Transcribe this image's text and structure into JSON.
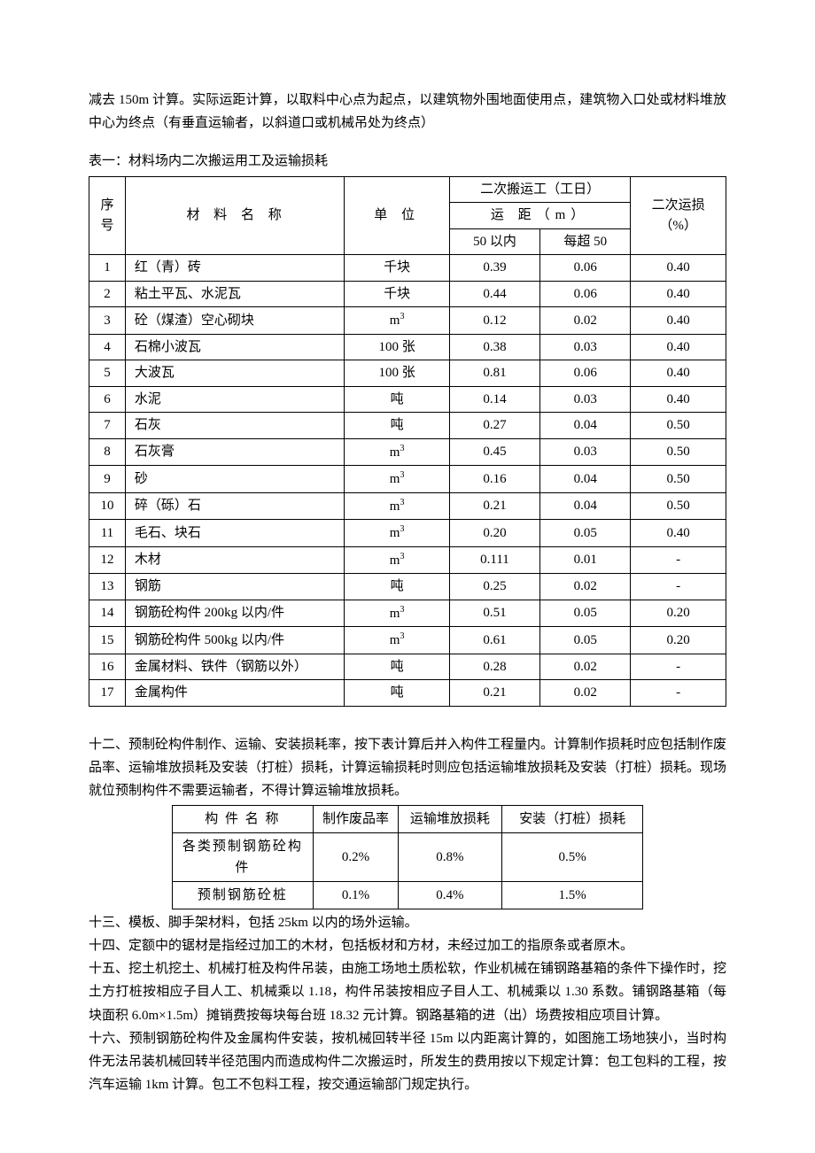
{
  "intro_para": "减去 150m 计算。实际运距计算，以取料中心点为起点，以建筑物外围地面使用点，建筑物入口处或材料堆放中心为终点（有垂直运输者，以斜道口或机械吊处为终点）",
  "table1": {
    "title": "表一：材料场内二次搬运用工及运输损耗",
    "headers": {
      "seq": "序号",
      "name": "材 料 名 称",
      "unit": "单 位",
      "labor_group": "二次搬运工（工日）",
      "dist_group": "运 距（m）",
      "dist_a": "50 以内",
      "dist_b": "每超 50",
      "loss": "二次运损（%）"
    },
    "rows": [
      {
        "seq": "1",
        "name": "红（青）砖",
        "unit": "千块",
        "v1": "0.39",
        "v2": "0.06",
        "loss": "0.40"
      },
      {
        "seq": "2",
        "name": "粘土平瓦、水泥瓦",
        "unit": "千块",
        "v1": "0.44",
        "v2": "0.06",
        "loss": "0.40"
      },
      {
        "seq": "3",
        "name": "砼（煤渣）空心砌块",
        "unit": "m³",
        "v1": "0.12",
        "v2": "0.02",
        "loss": "0.40"
      },
      {
        "seq": "4",
        "name": "石棉小波瓦",
        "unit": "100 张",
        "v1": "0.38",
        "v2": "0.03",
        "loss": "0.40"
      },
      {
        "seq": "5",
        "name": "大波瓦",
        "unit": "100 张",
        "v1": "0.81",
        "v2": "0.06",
        "loss": "0.40"
      },
      {
        "seq": "6",
        "name": "水泥",
        "unit": "吨",
        "v1": "0.14",
        "v2": "0.03",
        "loss": "0.40"
      },
      {
        "seq": "7",
        "name": "石灰",
        "unit": "吨",
        "v1": "0.27",
        "v2": "0.04",
        "loss": "0.50"
      },
      {
        "seq": "8",
        "name": "石灰膏",
        "unit": "m³",
        "v1": "0.45",
        "v2": "0.03",
        "loss": "0.50"
      },
      {
        "seq": "9",
        "name": "砂",
        "unit": "m³",
        "v1": "0.16",
        "v2": "0.04",
        "loss": "0.50"
      },
      {
        "seq": "10",
        "name": "碎（砾）石",
        "unit": "m³",
        "v1": "0.21",
        "v2": "0.04",
        "loss": "0.50"
      },
      {
        "seq": "11",
        "name": "毛石、块石",
        "unit": "m³",
        "v1": "0.20",
        "v2": "0.05",
        "loss": "0.40"
      },
      {
        "seq": "12",
        "name": "木材",
        "unit": "m³",
        "v1": "0.111",
        "v2": "0.01",
        "loss": "-"
      },
      {
        "seq": "13",
        "name": "钢筋",
        "unit": "吨",
        "v1": "0.25",
        "v2": "0.02",
        "loss": "-"
      },
      {
        "seq": "14",
        "name": "钢筋砼构件 200kg 以内/件",
        "unit": "m³",
        "v1": "0.51",
        "v2": "0.05",
        "loss": "0.20"
      },
      {
        "seq": "15",
        "name": "钢筋砼构件 500kg 以内/件",
        "unit": "m³",
        "v1": "0.61",
        "v2": "0.05",
        "loss": "0.20"
      },
      {
        "seq": "16",
        "name": "金属材料、铁件（钢筋以外）",
        "unit": "吨",
        "v1": "0.28",
        "v2": "0.02",
        "loss": "-"
      },
      {
        "seq": "17",
        "name": "金属构件",
        "unit": "吨",
        "v1": "0.21",
        "v2": "0.02",
        "loss": "-"
      }
    ]
  },
  "para12": "十二、预制砼构件制作、运输、安装损耗率，按下表计算后并入构件工程量内。计算制作损耗时应包括制作废品率、运输堆放损耗及安装（打桩）损耗，计算运输损耗时则应包括运输堆放损耗及安装（打桩）损耗。现场就位预制构件不需要运输者，不得计算运输堆放损耗。",
  "table2": {
    "headers": {
      "name": "构 件 名 称",
      "a": "制作废品率",
      "b": "运输堆放损耗",
      "c": "安装（打桩）损耗"
    },
    "rows": [
      {
        "name": "各类预制钢筋砼构件",
        "a": "0.2%",
        "b": "0.8%",
        "c": "0.5%"
      },
      {
        "name": "预制钢筋砼桩",
        "a": "0.1%",
        "b": "0.4%",
        "c": "1.5%"
      }
    ]
  },
  "para13": "十三、模板、脚手架材料，包括 25km 以内的场外运输。",
  "para14": "十四、定额中的锯材是指经过加工的木材，包括板材和方材，未经过加工的指原条或者原木。",
  "para15": "十五、挖土机挖土、机械打桩及构件吊装，由施工场地土质松软，作业机械在铺钢路基箱的条件下操作时，挖土方打桩按相应子目人工、机械乘以 1.18，构件吊装按相应子目人工、机械乘以 1.30 系数。铺钢路基箱（每块面积 6.0m×1.5m）摊销费按每块每台班 18.32 元计算。钢路基箱的进（出）场费按相应项目计算。",
  "para16": "十六、预制钢筋砼构件及金属构件安装，按机械回转半径 15m 以内距离计算的，如图施工场地狭小，当时构件无法吊装机械回转半径范围内而造成构件二次搬运时，所发生的费用按以下规定计算：包工包料的工程，按汽车运输 1km 计算。包工不包料工程，按交通运输部门规定执行。"
}
